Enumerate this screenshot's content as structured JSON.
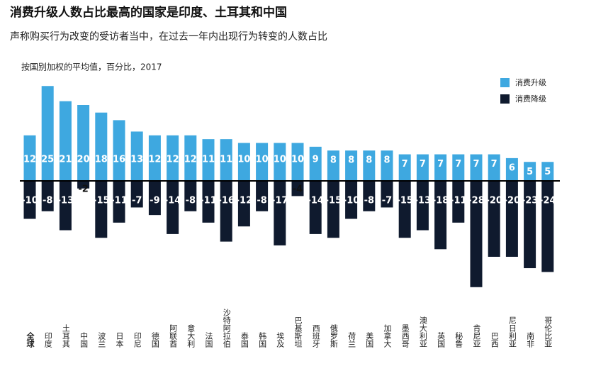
{
  "chart_data": {
    "type": "bar",
    "title": "消费升级人数占比最高的国家是印度、土耳其和中国",
    "subtitle": "声称购买行为改变的受访者当中，在过去一年内出现行为转变的人数占比",
    "note": "按国别加权的平均值，百分比，2017",
    "categories": [
      "全球",
      "印度",
      "土耳其",
      "中国",
      "波兰",
      "日本",
      "印尼",
      "德国",
      "阿联酋",
      "意大利",
      "法国",
      "沙特阿拉伯",
      "泰国",
      "韩国",
      "埃及",
      "巴基斯坦",
      "西班牙",
      "俄罗斯",
      "荷兰",
      "美国",
      "加拿大",
      "墨西哥",
      "澳大利亚",
      "英国",
      "秘鲁",
      "肯尼亚",
      "巴西",
      "尼日利亚",
      "南非",
      "哥伦比亚"
    ],
    "series": [
      {
        "name": "消费升级",
        "color": "#3ea8e0",
        "values": [
          12,
          25,
          21,
          20,
          18,
          16,
          13,
          12,
          12,
          12,
          11,
          11,
          10,
          10,
          10,
          10,
          9,
          8,
          8,
          8,
          8,
          7,
          7,
          7,
          7,
          7,
          7,
          6,
          5,
          5
        ]
      },
      {
        "name": "消费降级",
        "color": "#0f1a2e",
        "values": [
          -10,
          -8,
          -13,
          -2,
          -15,
          -11,
          -7,
          -9,
          -14,
          -8,
          -11,
          -16,
          -12,
          -8,
          -17,
          -4,
          -14,
          -15,
          -10,
          -8,
          -7,
          -15,
          -13,
          -18,
          -11,
          -28,
          -20,
          -20,
          -23,
          -24
        ]
      }
    ]
  }
}
